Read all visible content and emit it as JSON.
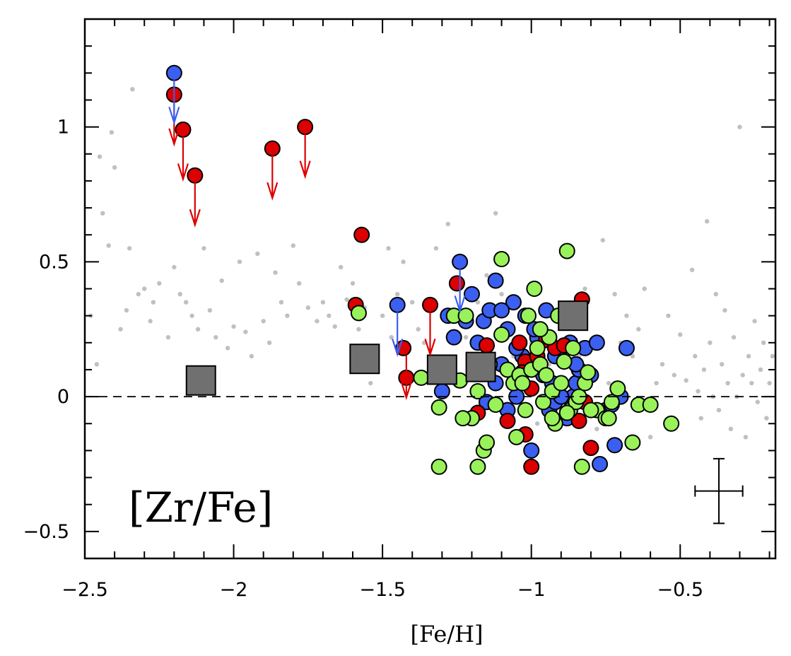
{
  "chart_data": {
    "type": "scatter",
    "title": "",
    "xlabel": "[Fe/H]",
    "ylabel": "",
    "annotation": "[Zr/Fe]",
    "xlim": [
      -2.5,
      -0.18
    ],
    "ylim": [
      -0.6,
      1.4
    ],
    "x_ticks": [
      -2.5,
      -2,
      -1.5,
      -1,
      -0.5
    ],
    "x_tick_labels": [
      "−2.5",
      "−2",
      "−1.5",
      "−1",
      "−0.5"
    ],
    "y_ticks": [
      -0.5,
      0,
      0.5,
      1
    ],
    "y_tick_labels": [
      "−0.5",
      "0",
      "0.5",
      "1"
    ],
    "reference_line_y": 0,
    "grid": false,
    "legend": "none",
    "colors": {
      "background_points": "#c0c0c0",
      "blue": "#3b5ff0",
      "red": "#dd0000",
      "green": "#99f25a",
      "mean": "#707070"
    },
    "error_bar": {
      "x": -0.37,
      "y": -0.35,
      "xerr": 0.08,
      "yerr": 0.12
    },
    "series": [
      {
        "color_key": "background_points",
        "style": "small-dot",
        "points": [
          [
            -2.48,
            0.3
          ],
          [
            -2.46,
            0.12
          ],
          [
            -2.45,
            0.89
          ],
          [
            -2.44,
            0.68
          ],
          [
            -2.42,
            0.56
          ],
          [
            -2.41,
            0.98
          ],
          [
            -2.4,
            0.85
          ],
          [
            -2.38,
            0.25
          ],
          [
            -2.36,
            0.32
          ],
          [
            -2.35,
            0.55
          ],
          [
            -2.34,
            1.14
          ],
          [
            -2.32,
            0.38
          ],
          [
            -2.3,
            0.4
          ],
          [
            -2.28,
            0.28
          ],
          [
            -2.27,
            0.35
          ],
          [
            -2.25,
            0.42
          ],
          [
            -2.22,
            0.22
          ],
          [
            -2.2,
            0.48
          ],
          [
            -2.18,
            0.38
          ],
          [
            -2.16,
            0.35
          ],
          [
            -2.14,
            0.3
          ],
          [
            -2.12,
            0.25
          ],
          [
            -2.1,
            0.55
          ],
          [
            -2.08,
            0.32
          ],
          [
            -2.06,
            0.22
          ],
          [
            -2.04,
            0.43
          ],
          [
            -2.02,
            0.18
          ],
          [
            -2.0,
            0.26
          ],
          [
            -1.98,
            0.5
          ],
          [
            -1.96,
            0.24
          ],
          [
            -1.94,
            0.15
          ],
          [
            -1.92,
            0.53
          ],
          [
            -1.9,
            0.28
          ],
          [
            -1.88,
            0.2
          ],
          [
            -1.86,
            0.46
          ],
          [
            -1.84,
            0.35
          ],
          [
            -1.82,
            0.3
          ],
          [
            -1.8,
            0.56
          ],
          [
            -1.78,
            0.42
          ],
          [
            -1.75,
            0.33
          ],
          [
            -1.72,
            0.28
          ],
          [
            -1.7,
            0.35
          ],
          [
            -1.68,
            0.3
          ],
          [
            -1.66,
            0.26
          ],
          [
            -1.64,
            0.48
          ],
          [
            -1.62,
            0.36
          ],
          [
            -1.6,
            0.42
          ],
          [
            -1.58,
            0.25
          ],
          [
            -1.56,
            0.33
          ],
          [
            -1.54,
            0.05
          ],
          [
            -1.52,
            0.12
          ],
          [
            -1.5,
            0.3
          ],
          [
            -1.48,
            0.55
          ],
          [
            -1.47,
            0.22
          ],
          [
            -1.45,
            0.38
          ],
          [
            -1.43,
            0.5
          ],
          [
            -1.4,
            0.35
          ],
          [
            -1.38,
            0.25
          ],
          [
            -1.36,
            0.2
          ],
          [
            -1.34,
            0.06
          ],
          [
            -1.32,
            0.55
          ],
          [
            -1.3,
            0.1
          ],
          [
            -1.28,
            0.64
          ],
          [
            -1.25,
            0.4
          ],
          [
            -1.22,
            0.22
          ],
          [
            -1.2,
            0.28
          ],
          [
            -1.18,
            0.35
          ],
          [
            -1.15,
            0.45
          ],
          [
            -1.12,
            0.68
          ],
          [
            -1.1,
            0.38
          ],
          [
            -1.08,
            0.22
          ],
          [
            -1.06,
            0.15
          ],
          [
            -1.04,
            0.1
          ],
          [
            -1.02,
            0.05
          ],
          [
            -1.0,
            0.2
          ],
          [
            -0.98,
            -0.1
          ],
          [
            -0.96,
            0.0
          ],
          [
            -0.94,
            0.12
          ],
          [
            -0.92,
            0.06
          ],
          [
            -0.9,
            -0.05
          ],
          [
            -0.88,
            -0.02
          ],
          [
            -0.86,
            0.2
          ],
          [
            -0.84,
            0.15
          ],
          [
            -0.82,
            0.4
          ],
          [
            -0.8,
            0.1
          ],
          [
            -0.78,
            -0.12
          ],
          [
            -0.76,
            0.58
          ],
          [
            -0.74,
            0.05
          ],
          [
            -0.72,
            0.38
          ],
          [
            -0.7,
            0.2
          ],
          [
            -0.68,
            0.3
          ],
          [
            -0.66,
            0.15
          ],
          [
            -0.64,
            0.25
          ],
          [
            -0.62,
            0.4
          ],
          [
            -0.6,
            -0.15
          ],
          [
            -0.58,
            0.05
          ],
          [
            -0.56,
            0.12
          ],
          [
            -0.54,
            0.3
          ],
          [
            -0.52,
            0.08
          ],
          [
            -0.5,
            0.23
          ],
          [
            -0.48,
            0.06
          ],
          [
            -0.46,
            0.47
          ],
          [
            -0.45,
            0.15
          ],
          [
            -0.44,
            0.02
          ],
          [
            -0.43,
            -0.08
          ],
          [
            -0.42,
            0.1
          ],
          [
            -0.41,
            0.65
          ],
          [
            -0.4,
            0.2
          ],
          [
            -0.39,
            0.0
          ],
          [
            -0.38,
            0.38
          ],
          [
            -0.37,
            -0.05
          ],
          [
            -0.36,
            0.12
          ],
          [
            -0.35,
            0.32
          ],
          [
            -0.34,
            0.05
          ],
          [
            -0.33,
            -0.12
          ],
          [
            -0.32,
            0.22
          ],
          [
            -0.31,
            0.0
          ],
          [
            -0.3,
            1.0
          ],
          [
            -0.29,
            0.08
          ],
          [
            -0.28,
            -0.15
          ],
          [
            -0.27,
            0.15
          ],
          [
            -0.26,
            0.05
          ],
          [
            -0.25,
            0.28
          ],
          [
            -0.24,
            -0.02
          ],
          [
            -0.23,
            0.1
          ],
          [
            -0.22,
            0.2
          ],
          [
            -0.21,
            -0.08
          ],
          [
            -0.2,
            0.05
          ],
          [
            -0.19,
            0.15
          ]
        ]
      },
      {
        "color_key": "blue",
        "style": "circle",
        "points": [
          [
            -2.2,
            1.2
          ],
          [
            -1.45,
            0.34
          ],
          [
            -1.24,
            0.5
          ],
          [
            -1.22,
            0.28
          ],
          [
            -1.2,
            0.38
          ],
          [
            -1.18,
            0.2
          ],
          [
            -1.16,
            0.28
          ],
          [
            -1.14,
            0.32
          ],
          [
            -1.12,
            0.43
          ],
          [
            -1.1,
            0.12
          ],
          [
            -1.08,
            0.25
          ],
          [
            -1.06,
            0.35
          ],
          [
            -1.05,
            0.0
          ],
          [
            -1.03,
            0.15
          ],
          [
            -1.02,
            0.3
          ],
          [
            -1.0,
            -0.2
          ],
          [
            -0.98,
            0.22
          ],
          [
            -0.97,
            0.1
          ],
          [
            -0.95,
            0.32
          ],
          [
            -0.94,
            -0.05
          ],
          [
            -0.93,
            0.05
          ],
          [
            -0.92,
            0.15
          ],
          [
            -0.9,
            0.18
          ],
          [
            -0.88,
            -0.08
          ],
          [
            -0.87,
            0.2
          ],
          [
            -0.86,
            0.0
          ],
          [
            -0.85,
            0.05
          ],
          [
            -0.84,
            0.1
          ],
          [
            -0.82,
            0.18
          ],
          [
            -0.8,
            0.08
          ],
          [
            -0.78,
            0.2
          ],
          [
            -0.77,
            -0.25
          ],
          [
            -0.75,
            -0.05
          ],
          [
            -0.73,
            -0.03
          ],
          [
            -0.72,
            -0.18
          ],
          [
            -0.7,
            0.0
          ],
          [
            -0.68,
            0.18
          ],
          [
            -1.3,
            0.02
          ],
          [
            -1.28,
            0.3
          ],
          [
            -1.26,
            0.22
          ],
          [
            -1.15,
            -0.02
          ],
          [
            -1.1,
            0.32
          ],
          [
            -1.05,
            0.18
          ],
          [
            -0.96,
            0.08
          ],
          [
            -0.92,
            -0.02
          ],
          [
            -0.85,
            0.12
          ],
          [
            -1.12,
            0.05
          ],
          [
            -1.08,
            -0.05
          ],
          [
            -0.99,
            0.25
          ],
          [
            -0.9,
            0.0
          ]
        ]
      },
      {
        "color_key": "red",
        "style": "circle",
        "points": [
          [
            -2.2,
            1.12
          ],
          [
            -2.17,
            0.99
          ],
          [
            -2.13,
            0.82
          ],
          [
            -1.87,
            0.92
          ],
          [
            -1.76,
            1.0
          ],
          [
            -1.57,
            0.6
          ],
          [
            -1.59,
            0.34
          ],
          [
            -1.42,
            0.07
          ],
          [
            -1.43,
            0.18
          ],
          [
            -1.34,
            0.34
          ],
          [
            -1.25,
            0.42
          ],
          [
            -1.18,
            -0.06
          ],
          [
            -1.15,
            0.19
          ],
          [
            -1.08,
            -0.09
          ],
          [
            -1.04,
            0.2
          ],
          [
            -1.02,
            0.13
          ],
          [
            -1.02,
            -0.14
          ],
          [
            -1.0,
            0.03
          ],
          [
            -0.98,
            0.15
          ],
          [
            -0.95,
            0.21
          ],
          [
            -0.92,
            0.18
          ],
          [
            -0.89,
            0.19
          ],
          [
            -0.83,
            0.36
          ],
          [
            -0.82,
            -0.02
          ],
          [
            -0.84,
            -0.09
          ],
          [
            -0.8,
            -0.19
          ],
          [
            -1.0,
            -0.26
          ],
          [
            -1.03,
            0.09
          ]
        ]
      },
      {
        "color_key": "green",
        "style": "circle",
        "points": [
          [
            -1.58,
            0.31
          ],
          [
            -1.37,
            0.07
          ],
          [
            -1.31,
            -0.04
          ],
          [
            -1.31,
            -0.26
          ],
          [
            -1.26,
            0.3
          ],
          [
            -1.24,
            0.06
          ],
          [
            -1.22,
            0.3
          ],
          [
            -1.2,
            -0.08
          ],
          [
            -1.18,
            -0.26
          ],
          [
            -1.18,
            0.02
          ],
          [
            -1.16,
            -0.2
          ],
          [
            -1.14,
            0.12
          ],
          [
            -1.12,
            -0.03
          ],
          [
            -1.1,
            0.51
          ],
          [
            -1.1,
            0.23
          ],
          [
            -1.08,
            0.1
          ],
          [
            -1.06,
            0.05
          ],
          [
            -1.05,
            -0.15
          ],
          [
            -1.04,
            0.08
          ],
          [
            -1.02,
            -0.05
          ],
          [
            -1.01,
            0.3
          ],
          [
            -1.0,
            0.1
          ],
          [
            -0.99,
            0.4
          ],
          [
            -0.98,
            0.18
          ],
          [
            -0.97,
            0.12
          ],
          [
            -0.96,
            -0.02
          ],
          [
            -0.95,
            0.08
          ],
          [
            -0.94,
            0.22
          ],
          [
            -0.93,
            0.02
          ],
          [
            -0.92,
            -0.1
          ],
          [
            -0.91,
            0.3
          ],
          [
            -0.9,
            0.05
          ],
          [
            -0.89,
            0.13
          ],
          [
            -0.88,
            0.54
          ],
          [
            -0.87,
            -0.05
          ],
          [
            -0.86,
            0.18
          ],
          [
            -0.85,
            -0.02
          ],
          [
            -0.84,
            0.0
          ],
          [
            -0.83,
            -0.26
          ],
          [
            -0.82,
            0.05
          ],
          [
            -0.81,
            0.09
          ],
          [
            -0.78,
            -0.05
          ],
          [
            -0.75,
            -0.08
          ],
          [
            -0.73,
            -0.02
          ],
          [
            -0.71,
            0.03
          ],
          [
            -0.66,
            -0.17
          ],
          [
            -0.64,
            -0.03
          ],
          [
            -0.6,
            -0.03
          ],
          [
            -0.53,
            -0.1
          ],
          [
            -1.23,
            -0.08
          ],
          [
            -1.15,
            -0.17
          ],
          [
            -1.03,
            0.05
          ],
          [
            -0.97,
            0.25
          ],
          [
            -0.93,
            -0.08
          ],
          [
            -0.88,
            -0.06
          ],
          [
            -0.8,
            -0.05
          ],
          [
            -0.74,
            -0.08
          ]
        ]
      },
      {
        "color_key": "mean",
        "style": "square",
        "points": [
          [
            -2.11,
            0.06
          ],
          [
            -1.56,
            0.14
          ],
          [
            -1.3,
            0.1
          ],
          [
            -1.17,
            0.11
          ],
          [
            -0.86,
            0.3
          ]
        ]
      },
      {
        "color_key": "red",
        "style": "arrow",
        "points": [
          [
            -2.2,
            1.12
          ],
          [
            -2.17,
            0.99
          ],
          [
            -2.13,
            0.82
          ],
          [
            -1.87,
            0.92
          ],
          [
            -1.76,
            1.0
          ],
          [
            -1.42,
            0.18
          ],
          [
            -1.34,
            0.34
          ]
        ]
      },
      {
        "color_key": "blue",
        "style": "arrow",
        "points": [
          [
            -2.2,
            1.2
          ],
          [
            -1.45,
            0.34
          ],
          [
            -1.24,
            0.5
          ]
        ]
      }
    ]
  }
}
